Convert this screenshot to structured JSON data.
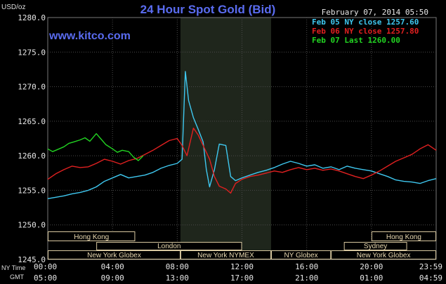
{
  "header": {
    "unit": "USD/oz",
    "title": "24 Hour Spot Gold (Bid)",
    "date": "February 07, 2014 05:50",
    "site": "www.kitco.com"
  },
  "legend": [
    {
      "label": "Feb 05 NY close 1257.60",
      "color": "#3fc8f0"
    },
    {
      "label": "Feb 06 NY close 1257.80",
      "color": "#e02020"
    },
    {
      "label": "Feb 07 Last 1260.00",
      "color": "#22d422"
    }
  ],
  "chart_data": {
    "type": "line",
    "title": "24 Hour Spot Gold (Bid)",
    "ylabel": "USD/oz",
    "ylim": [
      1245,
      1280
    ],
    "yticks": [
      "1280.0",
      "1275.0",
      "1270.0",
      "1265.0",
      "1260.0",
      "1255.0",
      "1250.0",
      "1245.0"
    ],
    "ny_time_label": "NY Time",
    "gmt_label": "GMT",
    "x_ticks_ny": [
      "00:00",
      "04:00",
      "08:00",
      "12:00",
      "16:00",
      "20:00",
      "23:59"
    ],
    "x_ticks_gmt": [
      "05:00",
      "09:00",
      "13:00",
      "17:00",
      "21:00",
      "01:00",
      "04:59"
    ],
    "x_range_hours": [
      0,
      24
    ],
    "highlight_hours": [
      8.2,
      13.8
    ],
    "series": [
      {
        "name": "Feb 05 NY close 1257.60",
        "color": "#3fc8f0",
        "x": [
          0,
          0.5,
          1,
          1.5,
          2,
          2.5,
          3,
          3.5,
          4,
          4.5,
          5,
          5.5,
          6,
          6.5,
          7,
          7.5,
          8,
          8.3,
          8.5,
          8.7,
          9,
          9.3,
          9.6,
          9.8,
          10,
          10.3,
          10.6,
          11,
          11.3,
          11.6,
          12,
          12.5,
          13,
          13.5,
          14,
          14.5,
          15,
          15.5,
          16,
          16.5,
          17,
          17.5,
          18,
          18.5,
          19,
          19.5,
          20,
          20.5,
          21,
          21.5,
          22,
          22.5,
          23,
          23.5,
          24
        ],
        "values": [
          1253.8,
          1254.0,
          1254.2,
          1254.5,
          1254.7,
          1255.0,
          1255.5,
          1256.3,
          1256.8,
          1257.3,
          1256.8,
          1257.0,
          1257.2,
          1257.6,
          1258.2,
          1258.6,
          1258.9,
          1259.5,
          1272.2,
          1268.0,
          1265.5,
          1263.8,
          1262.0,
          1258.0,
          1255.5,
          1258.0,
          1261.7,
          1261.5,
          1257.0,
          1256.4,
          1256.8,
          1257.2,
          1257.6,
          1257.9,
          1258.3,
          1258.8,
          1259.2,
          1258.9,
          1258.5,
          1258.7,
          1258.2,
          1258.4,
          1258.0,
          1258.5,
          1258.2,
          1258.0,
          1257.8,
          1257.4,
          1257.0,
          1256.5,
          1256.3,
          1256.2,
          1256.0,
          1256.4,
          1256.7
        ]
      },
      {
        "name": "Feb 06 NY close 1257.80",
        "color": "#e02020",
        "x": [
          0,
          0.5,
          1,
          1.5,
          2,
          2.5,
          3,
          3.5,
          4,
          4.5,
          5,
          5.5,
          6,
          6.5,
          7,
          7.5,
          8,
          8.3,
          8.6,
          9,
          9.3,
          9.6,
          10,
          10.3,
          10.6,
          11,
          11.3,
          11.6,
          12,
          12.5,
          13,
          13.5,
          14,
          14.5,
          15,
          15.5,
          16,
          16.5,
          17,
          17.5,
          18,
          18.5,
          19,
          19.5,
          20,
          20.5,
          21,
          21.5,
          22,
          22.5,
          23,
          23.5,
          24
        ],
        "values": [
          1256.6,
          1257.4,
          1258.0,
          1258.5,
          1258.3,
          1258.4,
          1258.9,
          1259.5,
          1259.2,
          1258.8,
          1259.3,
          1259.6,
          1260.2,
          1260.8,
          1261.5,
          1262.2,
          1262.5,
          1261.5,
          1260.0,
          1264.0,
          1263.0,
          1261.5,
          1259.5,
          1257.0,
          1255.6,
          1255.2,
          1254.6,
          1256.0,
          1256.6,
          1257.0,
          1257.2,
          1257.5,
          1257.8,
          1257.6,
          1258.0,
          1258.3,
          1258.0,
          1258.2,
          1257.9,
          1258.1,
          1257.8,
          1257.4,
          1257.0,
          1256.7,
          1257.2,
          1257.8,
          1258.5,
          1259.2,
          1259.7,
          1260.2,
          1261.0,
          1261.6,
          1260.8
        ]
      },
      {
        "name": "Feb 07 Last 1260.00",
        "color": "#22d422",
        "x": [
          0,
          0.3,
          0.6,
          1,
          1.3,
          1.6,
          2,
          2.3,
          2.6,
          3,
          3.3,
          3.6,
          4,
          4.3,
          4.6,
          5,
          5.3,
          5.6,
          5.9
        ],
        "values": [
          1261.0,
          1260.6,
          1260.9,
          1261.3,
          1261.8,
          1262.0,
          1262.3,
          1262.6,
          1262.1,
          1263.2,
          1262.4,
          1261.6,
          1261.0,
          1260.5,
          1260.8,
          1260.6,
          1259.8,
          1259.3,
          1260.0
        ]
      }
    ]
  },
  "sessions": [
    {
      "label": "Hong Kong",
      "row": 0,
      "segments": [
        [
          0,
          5.4
        ],
        [
          20.0,
          24
        ]
      ],
      "seg_labels": [
        "Hong Kong",
        "Hong Kong"
      ]
    },
    {
      "label": "London",
      "row": 1,
      "segments": [
        [
          3.0,
          12.0
        ]
      ],
      "seg_labels": [
        "London"
      ]
    },
    {
      "label": "Sydney",
      "row": 1,
      "segments": [
        [
          18.3,
          22.2
        ]
      ],
      "seg_labels": [
        "Sydney"
      ]
    },
    {
      "label": "Globex",
      "row": 2,
      "segments": [
        [
          0,
          8.2
        ],
        [
          8.2,
          13.8
        ],
        [
          13.8,
          17.5
        ],
        [
          17.5,
          24
        ]
      ],
      "seg_labels": [
        "New York Globex",
        "New York NYMEX",
        "NY Globex",
        "New York Globex"
      ]
    }
  ]
}
